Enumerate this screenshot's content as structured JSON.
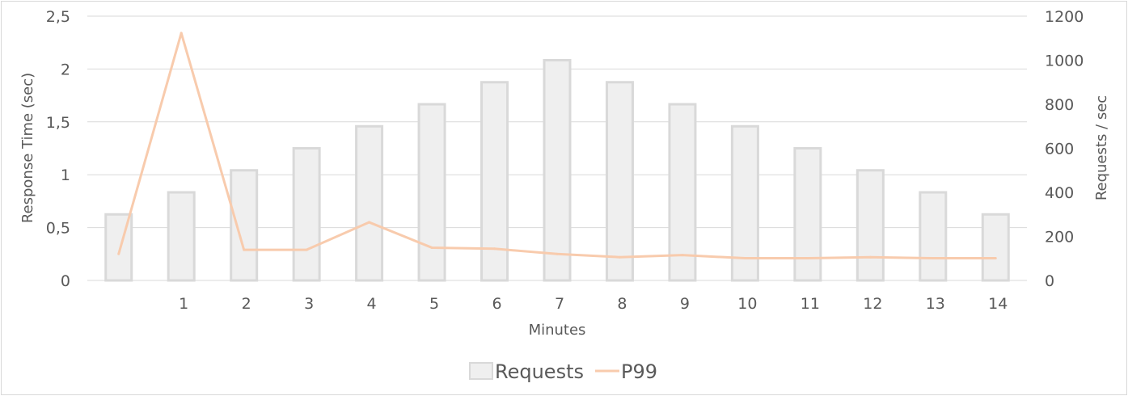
{
  "chart_data": {
    "type": "bar+line",
    "categories": [
      "",
      "1",
      "2",
      "3",
      "4",
      "5",
      "6",
      "7",
      "8",
      "9",
      "10",
      "11",
      "12",
      "13",
      "14"
    ],
    "xlabel": "Minutes",
    "ylabel_left": "Response Time (sec)",
    "ylabel_right": "Requests / sec",
    "ylim_left": [
      0,
      2.5
    ],
    "ylim_right": [
      0,
      1200
    ],
    "yticks_left": [
      "0",
      "0,5",
      "1",
      "1,5",
      "2",
      "2,5"
    ],
    "yticks_right": [
      "0",
      "200",
      "400",
      "600",
      "800",
      "1000",
      "1200"
    ],
    "grid": true,
    "legend_position": "bottom",
    "series": [
      {
        "name": "Requests",
        "type": "bar",
        "axis": "right",
        "color": "#efefef",
        "border_color": "#d9d9d9",
        "values": [
          300,
          400,
          500,
          600,
          700,
          800,
          900,
          1000,
          900,
          800,
          700,
          600,
          500,
          400,
          300
        ]
      },
      {
        "name": "P99",
        "type": "line",
        "axis": "left",
        "color": "#f8cbad",
        "values": [
          0.25,
          2.34,
          0.29,
          0.29,
          0.55,
          0.31,
          0.3,
          0.25,
          0.22,
          0.24,
          0.21,
          0.21,
          0.22,
          0.21,
          0.21
        ]
      }
    ]
  }
}
